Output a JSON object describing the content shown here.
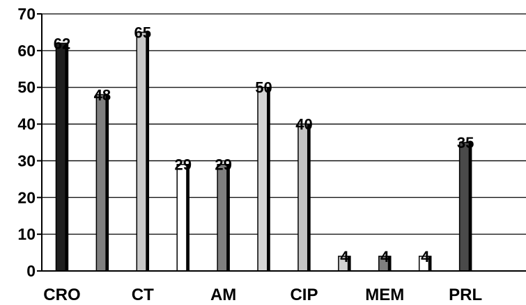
{
  "chart_data": {
    "type": "bar",
    "title": "",
    "xlabel": "",
    "ylabel": "",
    "ylim": [
      0,
      70
    ],
    "yticks": [
      0,
      10,
      20,
      30,
      40,
      50,
      60,
      70
    ],
    "grid": true,
    "legend": "none",
    "categories": [
      "CRO",
      "CT",
      "AM",
      "CIP",
      "MEM",
      "PRL"
    ],
    "bars": [
      {
        "value": 62,
        "color": "#1f1f1f"
      },
      {
        "value": 48,
        "color": "#7f7f7f"
      },
      {
        "value": 65,
        "color": "#c8c8c8"
      },
      {
        "value": 29,
        "color": "#ffffff"
      },
      {
        "value": 29,
        "color": "#7f7f7f"
      },
      {
        "value": 50,
        "color": "#d4d4d4"
      },
      {
        "value": 40,
        "color": "#c4c4c4"
      },
      {
        "value": 4,
        "color": "#d0d0d0"
      },
      {
        "value": 4,
        "color": "#7f7f7f"
      },
      {
        "value": 4,
        "color": "#ffffff"
      },
      {
        "value": 35,
        "color": "#4a4a4a"
      }
    ]
  }
}
